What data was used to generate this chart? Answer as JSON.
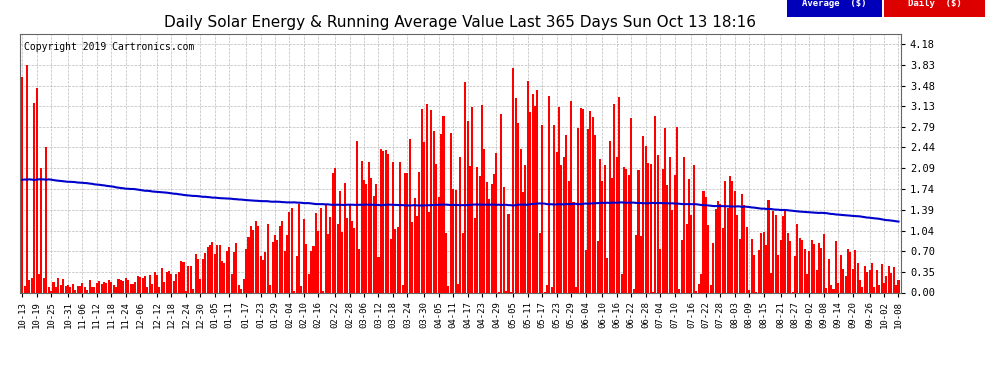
{
  "title": "Daily Solar Energy & Running Average Value Last 365 Days Sun Oct 13 18:16",
  "copyright": "Copyright 2019 Cartronics.com",
  "yticks": [
    0.0,
    0.35,
    0.7,
    1.04,
    1.39,
    1.74,
    2.09,
    2.44,
    2.79,
    3.13,
    3.48,
    3.83,
    4.18
  ],
  "ylim": [
    0.0,
    4.35
  ],
  "bar_color": "#ff0000",
  "avg_color": "#0000cc",
  "bg_color": "#ffffff",
  "grid_color": "#bbbbbb",
  "title_fontsize": 11,
  "copyright_fontsize": 7,
  "legend_avg_color": "#0000bb",
  "legend_daily_color": "#dd0000",
  "xtick_labels": [
    "10-13",
    "10-19",
    "10-25",
    "10-31",
    "11-06",
    "11-12",
    "11-18",
    "11-24",
    "12-06",
    "12-12",
    "12-18",
    "12-24",
    "12-30",
    "01-05",
    "01-11",
    "01-17",
    "01-23",
    "01-29",
    "02-04",
    "02-10",
    "02-16",
    "02-22",
    "02-28",
    "03-06",
    "03-12",
    "03-18",
    "03-24",
    "03-30",
    "04-05",
    "04-11",
    "04-17",
    "04-23",
    "04-29",
    "05-05",
    "05-11",
    "05-17",
    "05-23",
    "05-29",
    "06-04",
    "06-10",
    "06-16",
    "06-22",
    "06-28",
    "07-04",
    "07-10",
    "07-16",
    "07-22",
    "07-28",
    "08-03",
    "08-09",
    "08-15",
    "08-21",
    "08-27",
    "09-02",
    "09-08",
    "09-14",
    "09-20",
    "09-26",
    "10-02",
    "10-08"
  ]
}
